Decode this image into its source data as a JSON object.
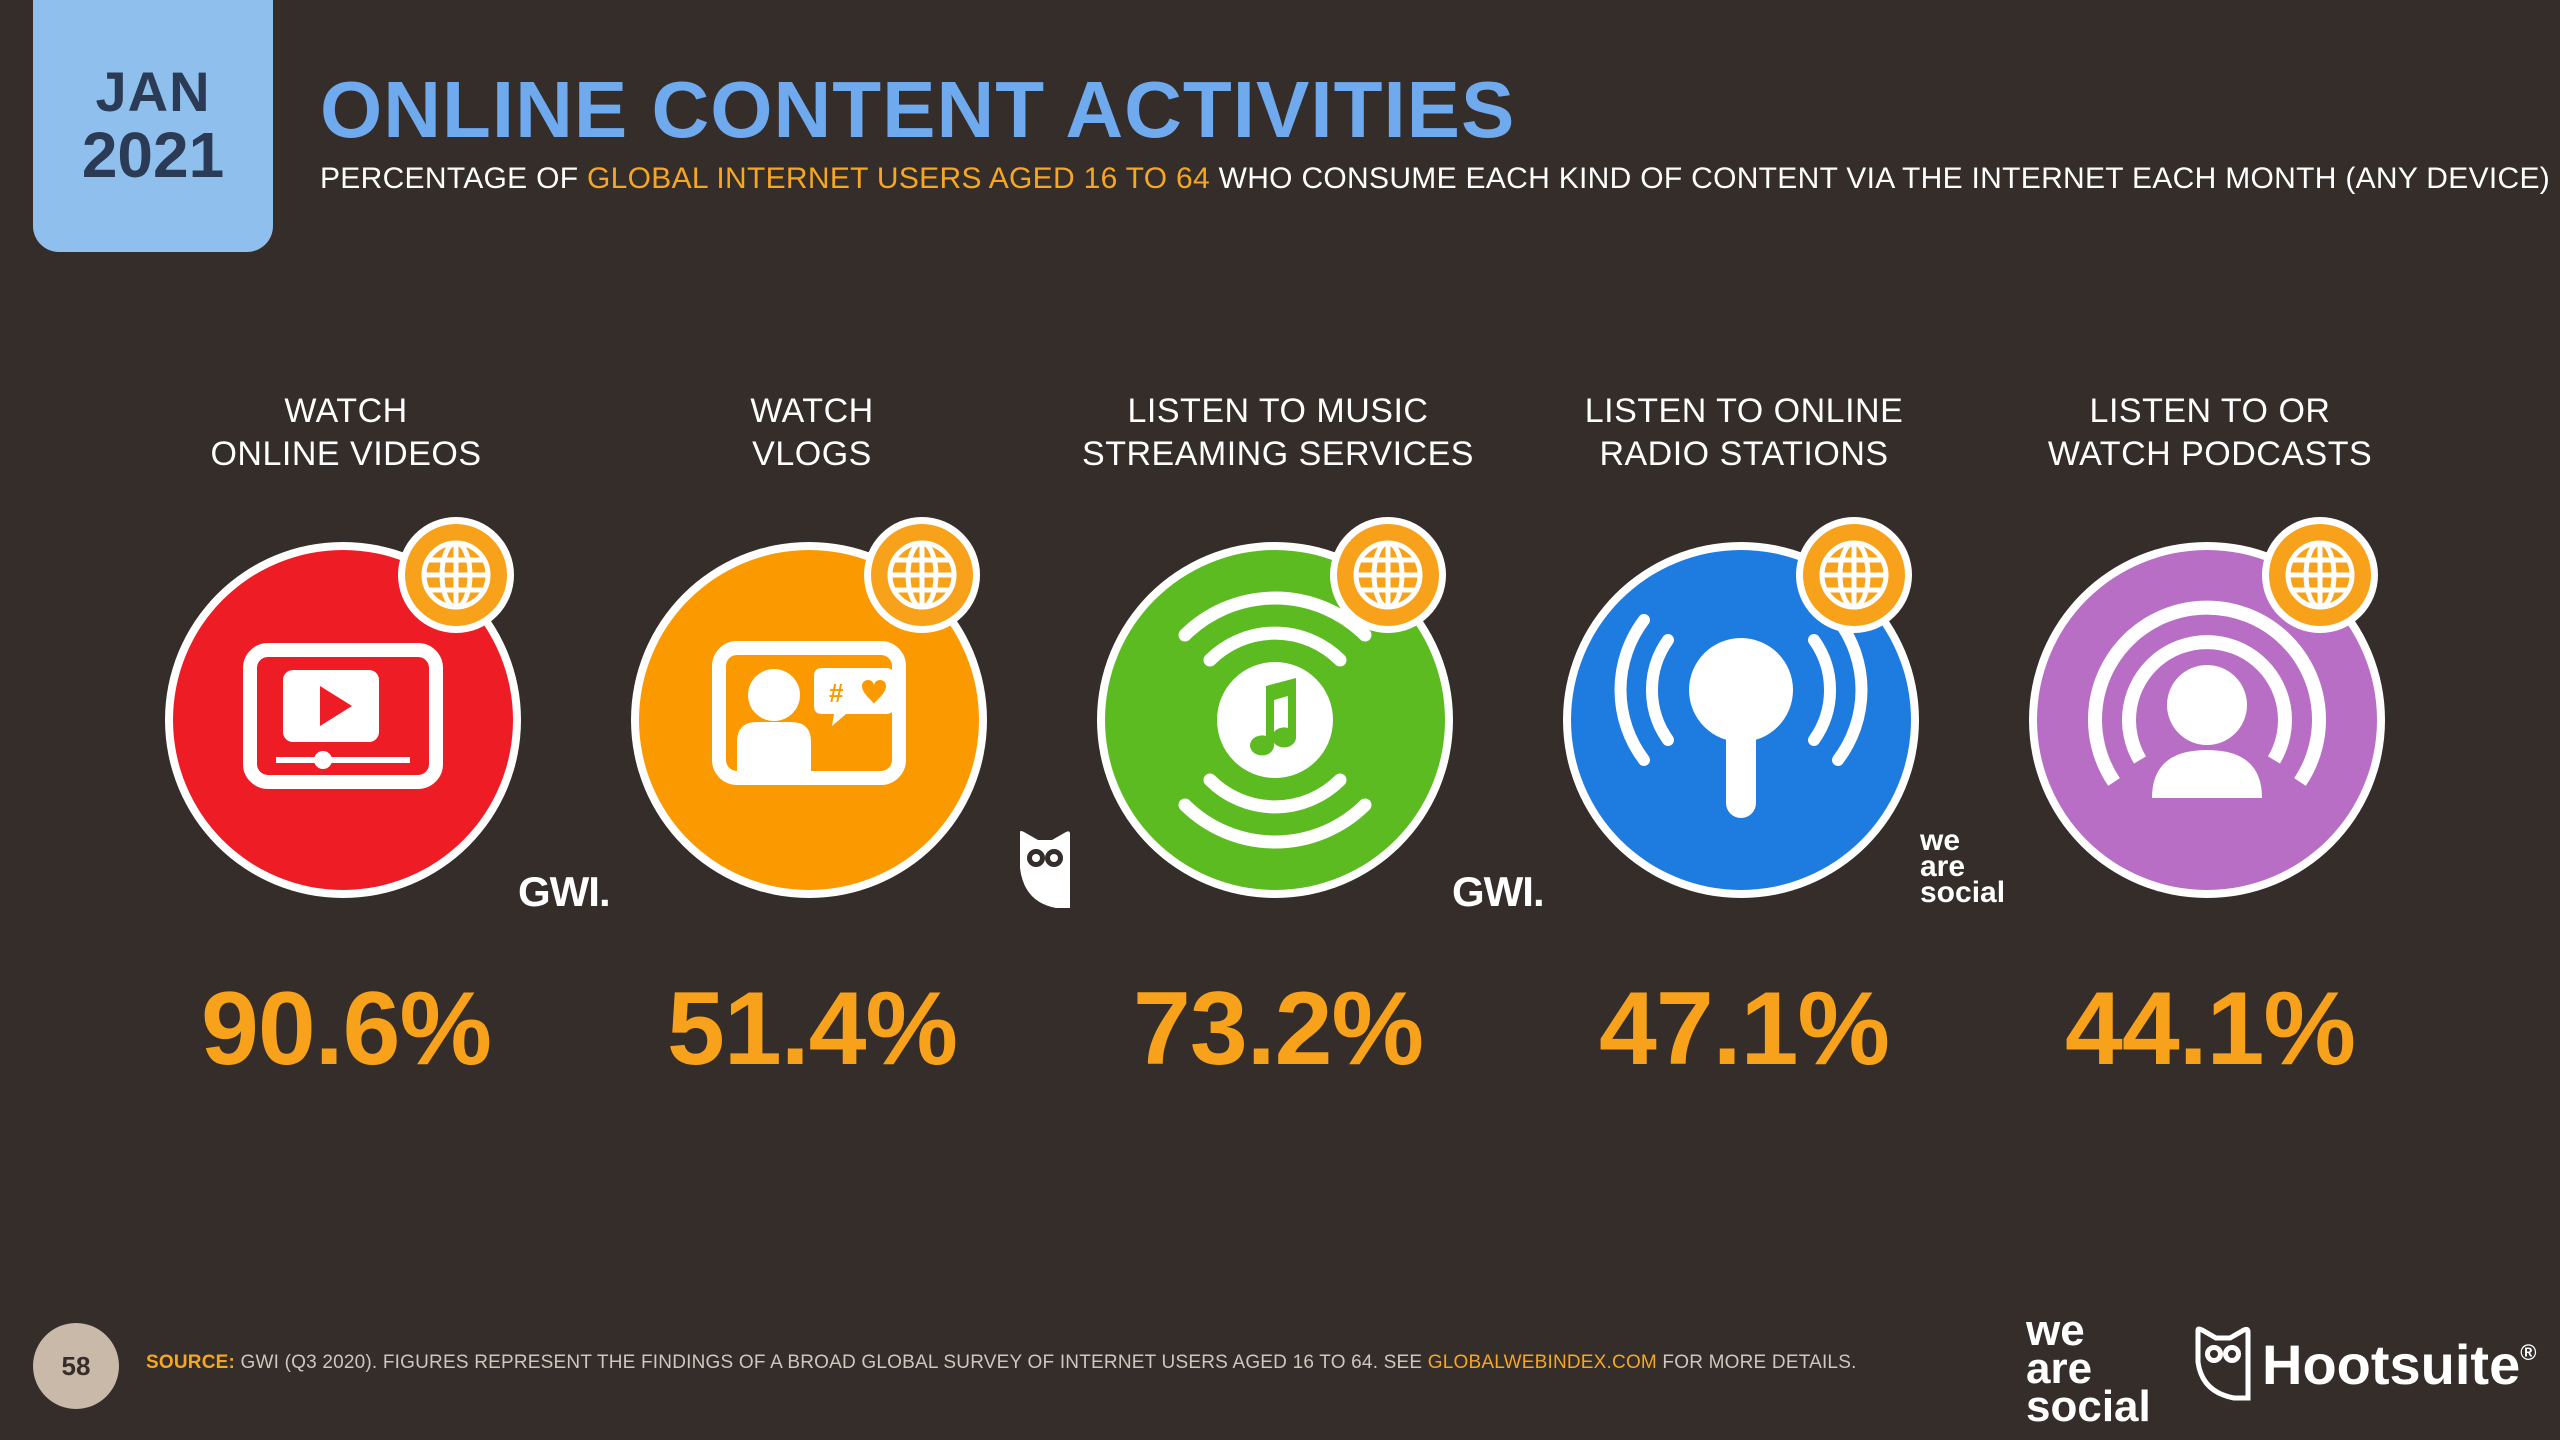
{
  "header": {
    "badge_month": "JAN",
    "badge_year": "2021",
    "title": "ONLINE CONTENT ACTIVITIES",
    "subtitle_pre": "PERCENTAGE OF ",
    "subtitle_highlight": "GLOBAL INTERNET USERS AGED 16 TO 64",
    "subtitle_post": " WHO CONSUME EACH KIND OF CONTENT VIA THE INTERNET EACH MONTH (ANY DEVICE)"
  },
  "chart_data": {
    "type": "table",
    "title": "ONLINE CONTENT ACTIVITIES",
    "unit": "%",
    "categories": [
      "WATCH ONLINE VIDEOS",
      "WATCH VLOGS",
      "LISTEN TO MUSIC STREAMING SERVICES",
      "LISTEN TO ONLINE RADIO STATIONS",
      "LISTEN TO OR WATCH PODCASTS"
    ],
    "values": [
      90.6,
      51.4,
      73.2,
      47.1,
      44.1
    ]
  },
  "tiles": [
    {
      "line1": "WATCH",
      "line2": "ONLINE VIDEOS",
      "value_text": "90.6%",
      "color": "#ee1c25",
      "icon": "video-player-icon"
    },
    {
      "line1": "WATCH",
      "line2": "VLOGS",
      "value_text": "51.4%",
      "color": "#fb9a00",
      "icon": "vlog-screen-icon"
    },
    {
      "line1": "LISTEN TO MUSIC",
      "line2": "STREAMING SERVICES",
      "value_text": "73.2%",
      "color": "#5dbb22",
      "icon": "music-stream-icon"
    },
    {
      "line1": "LISTEN TO ONLINE",
      "line2": "RADIO STATIONS",
      "value_text": "47.1%",
      "color": "#1e7be0",
      "icon": "radio-mic-icon"
    },
    {
      "line1": "LISTEN TO OR",
      "line2": "WATCH PODCASTS",
      "value_text": "44.1%",
      "color": "#b96ec6",
      "icon": "podcast-icon"
    }
  ],
  "partners": {
    "gwi": "GWI.",
    "we": "we",
    "are": "are",
    "social": "social"
  },
  "colors": {
    "background": "#342d29",
    "accent": "#f7a21a",
    "title": "#6fa9ee",
    "globe_badge": "#f7a21a"
  },
  "footer": {
    "page_number": "58",
    "source_label": "SOURCE:",
    "source_text": " GWI (Q3 2020). FIGURES REPRESENT THE FINDINGS OF A BROAD GLOBAL SURVEY OF INTERNET USERS AGED 16 TO 64. SEE ",
    "source_link": "GLOBALWEBINDEX.COM",
    "source_tail": " FOR MORE DETAILS.",
    "brand_we": "we",
    "brand_are": "are",
    "brand_social": "social",
    "hootsuite": "Hootsuite",
    "hootsuite_mark": "®"
  }
}
